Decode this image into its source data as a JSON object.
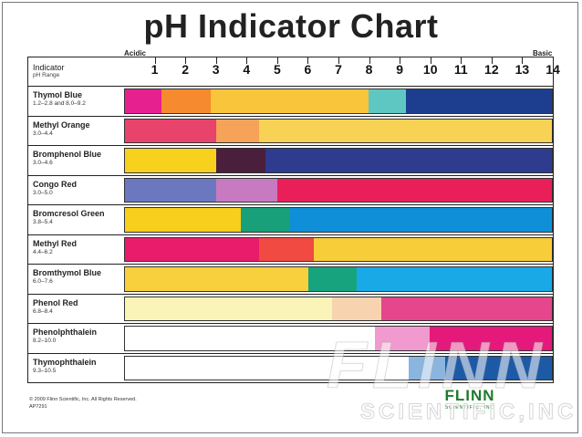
{
  "title": "pH Indicator Chart",
  "acidic_label": "Acidic",
  "basic_label": "Basic",
  "header": {
    "indicator": "Indicator",
    "ph_range": "pH Range"
  },
  "ticks": [
    "1",
    "2",
    "3",
    "4",
    "5",
    "6",
    "7",
    "8",
    "9",
    "10",
    "11",
    "12",
    "13",
    "14"
  ],
  "copyright_line1": "© 2009 Flinn Scientific, Inc. All Rights Reserved.",
  "copyright_line2": "AP7291",
  "logo": {
    "main": "FLINN",
    "sub": "SCIENTIFIC, INC"
  },
  "watermark": {
    "main": "FLINN",
    "sub": "SCIENTIFIC,INC"
  },
  "chart_data": {
    "type": "bar",
    "title": "pH Indicator Chart",
    "x_range": [
      0,
      14
    ],
    "indicators": [
      {
        "name": "Thymol Blue",
        "range": "1.2–2.8 and 8.0–9.2",
        "segments": [
          [
            0,
            1.2,
            "#e6208f"
          ],
          [
            1.2,
            2.8,
            "#f58a2e"
          ],
          [
            2.8,
            8.0,
            "#f9c53b"
          ],
          [
            8.0,
            9.2,
            "#5ec7c2"
          ],
          [
            9.2,
            14,
            "#1d3d8f"
          ]
        ]
      },
      {
        "name": "Methyl Orange",
        "range": "3.0–4.4",
        "segments": [
          [
            0,
            3.0,
            "#e8436b"
          ],
          [
            3.0,
            4.4,
            "#f6a259"
          ],
          [
            4.4,
            14,
            "#f7d254"
          ]
        ]
      },
      {
        "name": "Bromphenol Blue",
        "range": "3.0–4.6",
        "segments": [
          [
            0,
            3.0,
            "#f7d11e"
          ],
          [
            3.0,
            4.6,
            "#4a1f3c"
          ],
          [
            4.6,
            14,
            "#2e3b8e"
          ]
        ]
      },
      {
        "name": "Congo Red",
        "range": "3.0–5.0",
        "segments": [
          [
            0,
            3.0,
            "#6b78bf"
          ],
          [
            3.0,
            5.0,
            "#c77ac0"
          ],
          [
            5.0,
            14,
            "#e91f5a"
          ]
        ]
      },
      {
        "name": "Bromcresol Green",
        "range": "3.8–5.4",
        "segments": [
          [
            0,
            3.8,
            "#f7cf1c"
          ],
          [
            3.8,
            5.4,
            "#17a07a"
          ],
          [
            5.4,
            14,
            "#0f8fd8"
          ]
        ]
      },
      {
        "name": "Methyl Red",
        "range": "4.4–6.2",
        "segments": [
          [
            0,
            4.4,
            "#e91c6c"
          ],
          [
            4.4,
            6.2,
            "#f04a43"
          ],
          [
            6.2,
            14,
            "#f8cd3a"
          ]
        ]
      },
      {
        "name": "Bromthymol Blue",
        "range": "6.0–7.6",
        "segments": [
          [
            0,
            6.0,
            "#f8cf3d"
          ],
          [
            6.0,
            7.6,
            "#17a37d"
          ],
          [
            7.6,
            14,
            "#18a9e6"
          ]
        ]
      },
      {
        "name": "Phenol Red",
        "range": "6.8–8.4",
        "segments": [
          [
            0,
            6.8,
            "#fbf4b8"
          ],
          [
            6.8,
            8.4,
            "#f8d3b0"
          ],
          [
            8.4,
            14,
            "#e6468b"
          ]
        ]
      },
      {
        "name": "Phenolphthalein",
        "range": "8.2–10.0",
        "segments": [
          [
            0,
            8.2,
            "#ffffff"
          ],
          [
            8.2,
            10.0,
            "#f19ad0"
          ],
          [
            10.0,
            14,
            "#e5197c"
          ]
        ]
      },
      {
        "name": "Thymophthalein",
        "range": "9.3–10.5",
        "segments": [
          [
            0,
            9.3,
            "#ffffff"
          ],
          [
            9.3,
            10.5,
            "#8ab5df"
          ],
          [
            10.5,
            14,
            "#1d5aa6"
          ]
        ]
      }
    ]
  }
}
